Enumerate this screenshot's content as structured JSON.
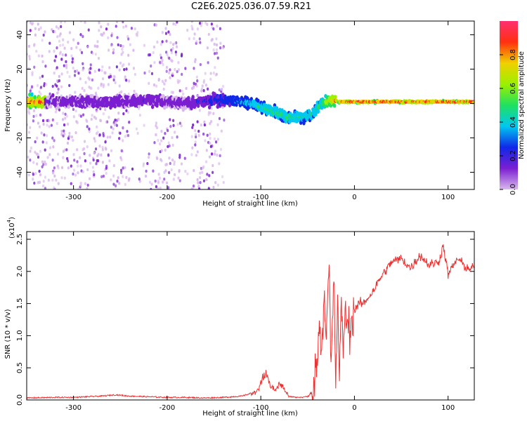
{
  "figure_title": "C2E6.2025.036.07.59.R21",
  "chart_data": [
    {
      "type": "heatmap",
      "xlabel": "Height of straight line (km)",
      "ylabel": "Frequency (Hz)",
      "xlim": [
        -350,
        128
      ],
      "ylim": [
        -50,
        48
      ],
      "x_ticks": [
        -300,
        -200,
        -100,
        0,
        100
      ],
      "y_ticks": [
        -40,
        -20,
        0,
        20,
        40
      ],
      "colorbar": {
        "label": "Normalized spectral amplitude",
        "range": [
          0.0,
          1.0
        ],
        "ticks": [
          0.0,
          0.2,
          0.4,
          0.6,
          0.8
        ],
        "tick_labels": [
          "0.0",
          "0.2",
          "0.4",
          "0.6",
          "0.8"
        ],
        "colors": [
          "#d9b8ec",
          "#7b1fd1",
          "#1028e8",
          "#00c8f0",
          "#20e060",
          "#9cf000",
          "#f0d000",
          "#ff3010",
          "#ff3070"
        ]
      },
      "ridge": {
        "x": [
          -330,
          -300,
          -260,
          -220,
          -180,
          -150,
          -130,
          -110,
          -90,
          -70,
          -55,
          -45,
          -35,
          -25,
          -15,
          0,
          50,
          100,
          128
        ],
        "y": [
          1,
          1,
          1,
          2,
          0,
          2,
          2,
          0,
          -4,
          -8,
          -8,
          -6,
          0,
          2,
          1,
          1,
          1,
          1,
          1
        ],
        "amplitude": [
          0.18,
          0.18,
          0.2,
          0.2,
          0.18,
          0.3,
          0.35,
          0.45,
          0.55,
          0.55,
          0.5,
          0.5,
          0.55,
          0.8,
          0.9,
          0.95,
          0.95,
          0.95,
          0.95
        ]
      }
    },
    {
      "type": "line",
      "xlabel": "Height of straight line (km)",
      "ylabel": "SNR (10 * v/v)",
      "y_multiplier": "(x10",
      "y_multiplier_exponent": "4",
      "xlim": [
        -350,
        128
      ],
      "ylim": [
        0,
        2.62
      ],
      "x_ticks": [
        -300,
        -200,
        -100,
        0,
        100
      ],
      "y_ticks": [
        0.0,
        0.5,
        1.0,
        1.5,
        2.0,
        2.5
      ],
      "y_tick_labels": [
        "0.0",
        "0.5",
        "1.0",
        "1.5",
        "2.0",
        "2.5"
      ],
      "color": "#ee3030",
      "series": [
        {
          "x": [
            -350,
            -320,
            -300,
            -270,
            -255,
            -240,
            -220,
            -200,
            -180,
            -160,
            -140,
            -120,
            -105,
            -100,
            -95,
            -90,
            -85,
            -80,
            -75,
            -70,
            -60,
            -50,
            -45,
            -40,
            -37,
            -35,
            -32,
            -30,
            -27,
            -25,
            -22,
            -20,
            -18,
            -16,
            -14,
            -12,
            -10,
            -5,
            0,
            5,
            10,
            20,
            30,
            40,
            50,
            60,
            70,
            80,
            90,
            95,
            100,
            110,
            120,
            128
          ],
          "y": [
            0.02,
            0.03,
            0.03,
            0.05,
            0.07,
            0.05,
            0.04,
            0.03,
            0.03,
            0.02,
            0.03,
            0.05,
            0.12,
            0.25,
            0.45,
            0.22,
            0.15,
            0.25,
            0.18,
            0.05,
            0.04,
            0.05,
            0.12,
            0.6,
            1.2,
            0.8,
            1.7,
            1.0,
            2.1,
            0.4,
            1.9,
            0.3,
            1.5,
            0.4,
            1.4,
            0.9,
            1.3,
            1.1,
            1.4,
            1.5,
            1.5,
            1.7,
            1.95,
            2.15,
            2.2,
            2.05,
            2.25,
            2.1,
            2.15,
            2.4,
            1.95,
            2.2,
            2.05,
            2.05
          ]
        }
      ]
    }
  ]
}
